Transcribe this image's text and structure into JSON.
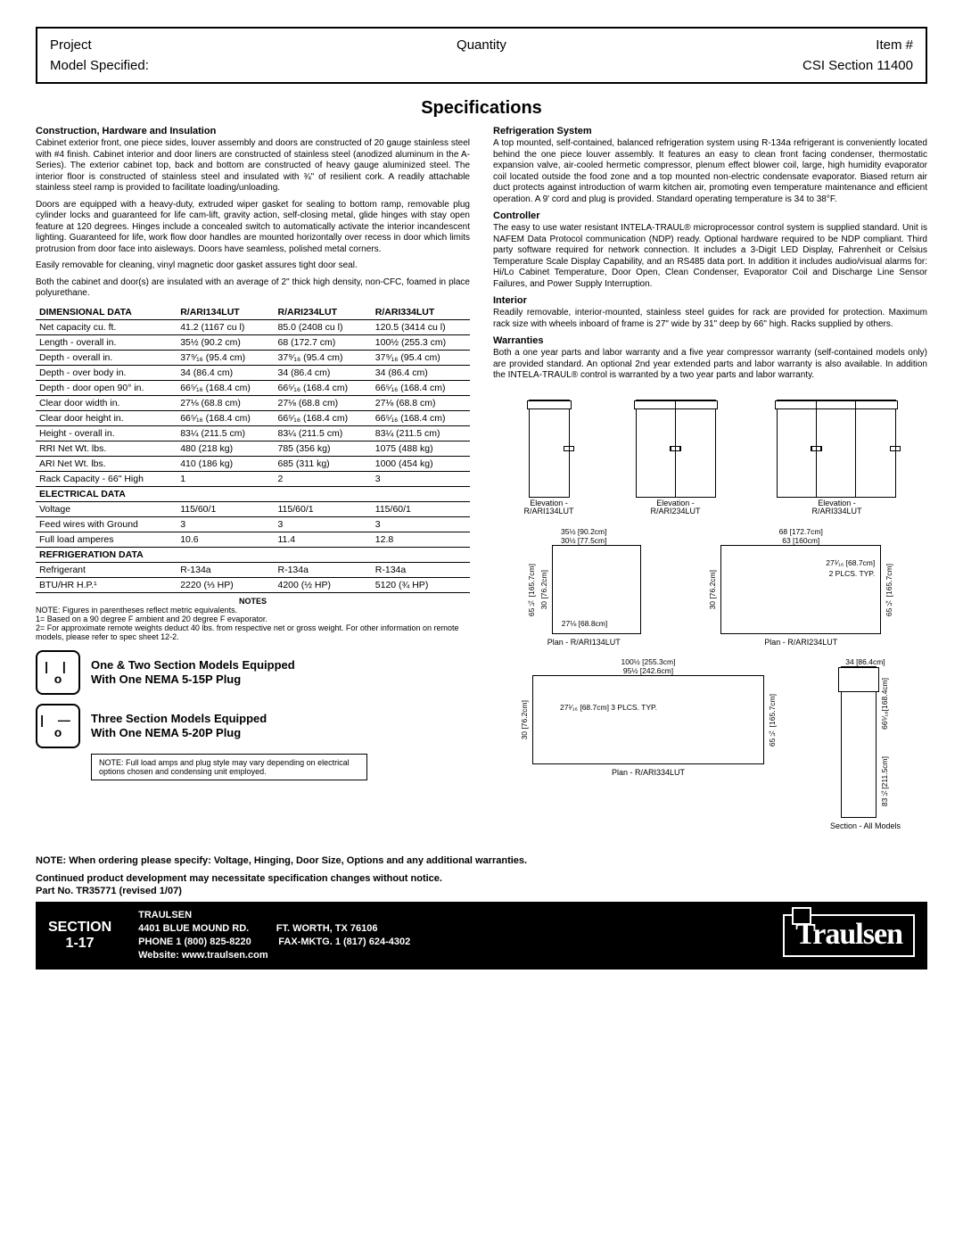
{
  "header": {
    "project": "Project",
    "quantity": "Quantity",
    "item": "Item #",
    "model_spec": "Model Specified:",
    "csi": "CSI Section 11400"
  },
  "title": "Specifications",
  "left_sections": [
    {
      "head": "Construction, Hardware and Insulation",
      "paras": [
        "Cabinet exterior front, one piece sides, louver assembly and doors are constructed of 20 gauge stainless steel with #4 finish. Cabinet interior and door liners are constructed of stainless steel (anodized aluminum in the A-Series). The exterior cabinet top, back and bottom are constructed of heavy gauge aluminized steel. The interior floor is constructed of stainless steel and insulated with ¾\" of resilient cork. A readily attachable stainless steel ramp is provided to facilitate loading/unloading.",
        "Doors are equipped with a heavy-duty, extruded wiper gasket for sealing to bottom ramp, removable plug cylinder locks and guaranteed for life cam-lift, gravity action, self-closing metal, glide hinges with stay open feature at 120 degrees. Hinges include a concealed switch to automatically activate the interior incandescent lighting. Guaranteed for life, work flow door handles are mounted horizontally over recess in door which limits protrusion from door face into aisleways. Doors have seamless, polished metal corners.",
        "Easily removable for cleaning, vinyl magnetic door gasket assures tight door seal.",
        "Both the cabinet and door(s) are insulated with an average of 2\" thick high density, non-CFC, foamed in place polyurethane."
      ]
    }
  ],
  "right_sections": [
    {
      "head": "Refrigeration System",
      "paras": [
        "A top mounted, self-contained, balanced refrigeration system using R-134a refrigerant is conveniently located behind the one piece louver assembly. It features an easy to clean front facing condenser, thermostatic expansion valve, air-cooled hermetic compressor, plenum effect blower coil, large, high humidity evaporator coil located outside the food zone and a top mounted non-electric condensate evaporator. Biased return air duct protects against introduction of warm kitchen air, promoting even temperature maintenance and efficient operation. A 9' cord and plug is provided. Standard operating temperature is 34 to 38°F."
      ]
    },
    {
      "head": "Controller",
      "paras": [
        "The easy to use water resistant INTELA-TRAUL® microprocessor control system is supplied standard. Unit is NAFEM Data Protocol communication (NDP) ready. Optional hardware required to be NDP compliant. Third party software required for network connection. It includes a 3-Digit LED Display, Fahrenheit or Celsius Temperature Scale Display Capability, and an RS485 data port. In addition it includes audio/visual alarms for: Hi/Lo Cabinet Temperature, Door Open, Clean Condenser, Evaporator Coil and Discharge Line Sensor Failures, and Power Supply Interruption."
      ]
    },
    {
      "head": "Interior",
      "paras": [
        "Readily removable, interior-mounted, stainless steel guides for rack are provided for protection. Maximum rack size with wheels inboard of frame is 27\" wide by 31\" deep by 66\" high. Racks supplied by others."
      ]
    },
    {
      "head": "Warranties",
      "paras": [
        "Both a one year parts and labor warranty and a five year compressor warranty (self-contained models only) are provided standard. An optional 2nd year extended parts and labor warranty is also available. In addition the INTELA-TRAUL® control is warranted by a two year parts and labor warranty."
      ]
    }
  ],
  "table": {
    "col_headers": [
      "",
      "R/ARI134LUT",
      "R/ARI234LUT",
      "R/ARI334LUT"
    ],
    "sections": [
      {
        "label": "DIMENSIONAL DATA",
        "rows": [
          [
            "Net capacity cu. ft.",
            "41.2 (1167 cu l)",
            "85.0 (2408 cu l)",
            "120.5 (3414 cu l)"
          ],
          [
            "Length - overall in.",
            "35½ (90.2 cm)",
            "68 (172.7 cm)",
            "100½ (255.3 cm)"
          ],
          [
            "Depth - overall in.",
            "37⁹⁄₁₆ (95.4 cm)",
            "37⁹⁄₁₆ (95.4 cm)",
            "37⁹⁄₁₆ (95.4 cm)"
          ],
          [
            "Depth - over body in.",
            "34 (86.4 cm)",
            "34 (86.4 cm)",
            "34 (86.4 cm)"
          ],
          [
            "Depth - door open 90° in.",
            "66⁵⁄₁₆ (168.4 cm)",
            "66⁵⁄₁₆ (168.4 cm)",
            "66⁵⁄₁₆ (168.4 cm)"
          ],
          [
            "Clear door width in.",
            "27⅛ (68.8 cm)",
            "27⅛ (68.8 cm)",
            "27⅛ (68.8 cm)"
          ],
          [
            "Clear door height in.",
            "66⁵⁄₁₆ (168.4 cm)",
            "66⁵⁄₁₆ (168.4 cm)",
            "66⁵⁄₁₆ (168.4 cm)"
          ],
          [
            "Height - overall in.",
            "83¼ (211.5 cm)",
            "83¼ (211.5 cm)",
            "83¼ (211.5 cm)"
          ],
          [
            "RRI Net Wt. lbs.",
            "480 (218 kg)",
            "785 (356 kg)",
            "1075 (488 kg)"
          ],
          [
            "ARI Net Wt. lbs.",
            "410 (186 kg)",
            "685 (311 kg)",
            "1000 (454 kg)"
          ],
          [
            "Rack Capacity - 66\" High",
            "1",
            "2",
            "3"
          ]
        ]
      },
      {
        "label": "ELECTRICAL DATA",
        "rows": [
          [
            "Voltage",
            "115/60/1",
            "115/60/1",
            "115/60/1"
          ],
          [
            "Feed wires with Ground",
            "3",
            "3",
            "3"
          ],
          [
            "Full load amperes",
            "10.6",
            "11.4",
            "12.8"
          ]
        ]
      },
      {
        "label": "REFRIGERATION DATA",
        "rows": [
          [
            "Refrigerant",
            "R-134a",
            "R-134a",
            "R-134a"
          ],
          [
            "BTU/HR H.P.¹",
            "2220 (⅓ HP)",
            "4200 (½ HP)",
            "5120 (¾ HP)"
          ]
        ]
      }
    ]
  },
  "notes": {
    "head": "NOTES",
    "lines": [
      "NOTE: Figures in parentheses reflect metric equivalents.",
      "1= Based on a 90 degree F ambient and 20 degree F evaporator.",
      "2= For approximate remote weights deduct 40 lbs. from respective net or gross weight. For other information on remote models, please refer to spec sheet 12-2."
    ]
  },
  "plugs": [
    {
      "prongs": "| |",
      "ground": "o",
      "line1": "One & Two Section Models Equipped",
      "line2": "With One NEMA 5-15P Plug"
    },
    {
      "prongs": "| —",
      "ground": "o",
      "line1": "Three Section Models Equipped",
      "line2": "With One NEMA 5-20P Plug"
    }
  ],
  "plug_note": "NOTE: Full load amps and plug style may vary depending on electrical options chosen and condensing unit employed.",
  "elevations": [
    {
      "label1": "Elevation -",
      "label2": "R/ARI134LUT",
      "doors": 1
    },
    {
      "label1": "Elevation -",
      "label2": "R/ARI234LUT",
      "doors": 2
    },
    {
      "label1": "Elevation -",
      "label2": "R/ARI334LUT",
      "doors": 3
    }
  ],
  "plans": {
    "p1": {
      "label": "Plan - R/ARI134LUT",
      "dims": {
        "top1": "35½ [90.2cm]",
        "top2": "30½ [77.5cm]",
        "side": "30 [76.2cm]",
        "inner": "27⅛ [68.8cm]",
        "hside": "65¼ [165.7cm]"
      }
    },
    "p2": {
      "label": "Plan - R/ARI234LUT",
      "dims": {
        "top1": "68 [172.7cm]",
        "top2": "63 [160cm]",
        "side": "30 [76.2cm]",
        "inner": "27¹⁄₁₆ [68.7cm]",
        "note": "2 PLCS. TYP.",
        "hside": "65¼ [165.7cm]"
      }
    },
    "p3": {
      "label": "Plan - R/ARI334LUT",
      "dims": {
        "top1": "100½ [255.3cm]",
        "top2": "95½ [242.6cm]",
        "side": "30 [76.2cm]",
        "inner": "27¹⁄₁₆ [68.7cm] 3 PLCS. TYP.",
        "hside": "65¼ [165.7cm]"
      }
    },
    "section": {
      "label": "Section - All Models",
      "dims": {
        "w": "34 [86.4cm]",
        "h1": "66⁵⁄₁₆[168.4cm]",
        "h2": "83¼[211.5cm]"
      }
    }
  },
  "bottom_note1": "NOTE: When ordering please specify: Voltage, Hinging, Door Size, Options and any additional warranties.",
  "bottom_note2": "Continued product development may necessitate specification changes without notice.",
  "part_no": "Part No. TR35771 (revised 1/07)",
  "footer": {
    "section_l1": "SECTION",
    "section_l2": "1-17",
    "brand": "TRAULSEN",
    "addr": "4401 BLUE MOUND RD.",
    "city": "FT. WORTH, TX 76106",
    "phone": "PHONE 1 (800) 825-8220",
    "fax": "FAX-MKTG. 1 (817) 624-4302",
    "web": "Website: www.traulsen.com",
    "logo": "Traulsen"
  }
}
